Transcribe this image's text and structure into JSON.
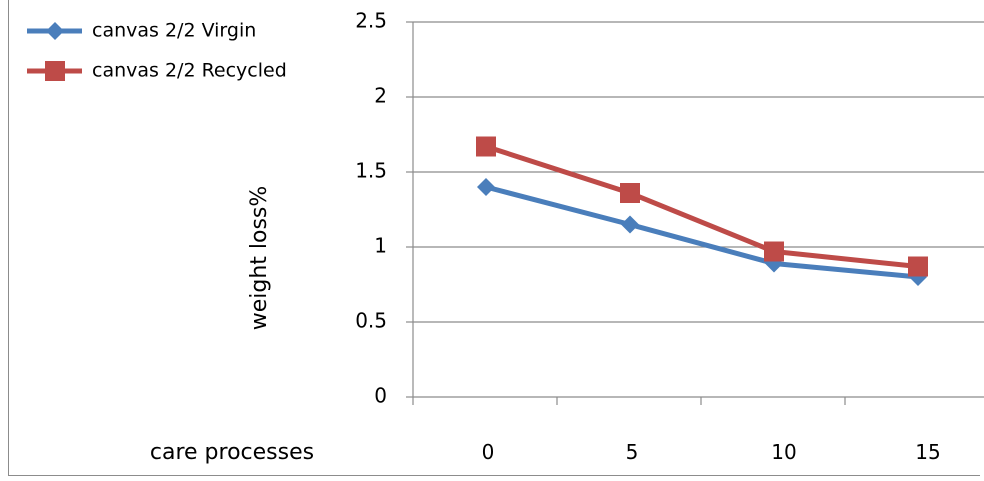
{
  "chart_data": {
    "type": "line",
    "categories": [
      "0",
      "5",
      "10",
      "15"
    ],
    "series": [
      {
        "name": "canvas 2/2 Virgin",
        "values": [
          1.4,
          1.15,
          0.89,
          0.8
        ],
        "color": "#4a7ebb",
        "marker": "diamond"
      },
      {
        "name": "canvas 2/2 Recycled",
        "values": [
          1.67,
          1.36,
          0.97,
          0.87
        ],
        "color": "#be4b48",
        "marker": "square"
      }
    ],
    "ylabel": "weight loss%",
    "xlabel": "care processes",
    "ylim": [
      0,
      2.5
    ],
    "yticks": [
      "0",
      "0.5",
      "1",
      "1.5",
      "2",
      "2.5"
    ],
    "grid": true,
    "legend_position": "top-left"
  }
}
